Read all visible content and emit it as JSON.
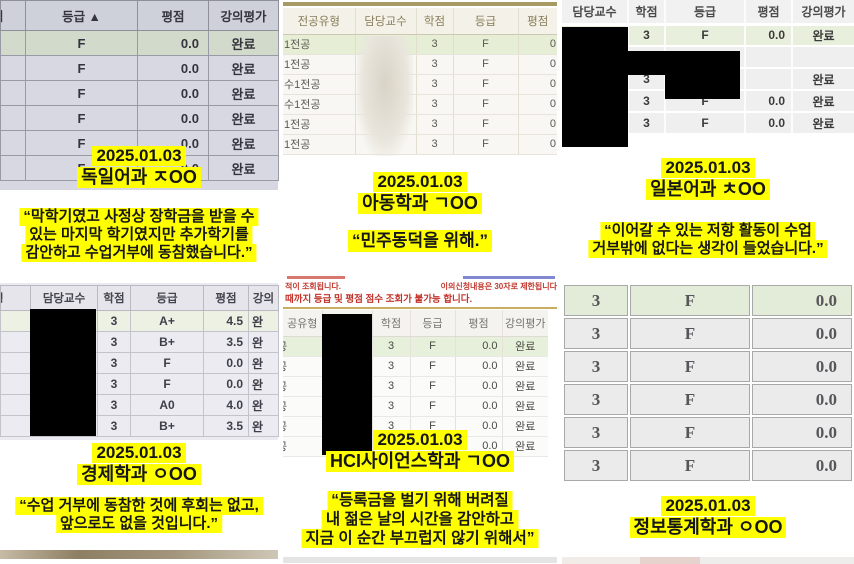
{
  "colors": {
    "highlight_yellow": "#ffff00",
    "notice_red": "#c2332b",
    "redaction_black": "#000000",
    "row_green": "#e6efdb"
  },
  "panels": {
    "german": {
      "table": {
        "headers": [
          "점",
          "등급 ▲",
          "평점",
          "강의평가"
        ],
        "rows": [
          [
            "",
            "F",
            "0.0",
            "완료"
          ],
          [
            "",
            "F",
            "0.0",
            "완료"
          ],
          [
            "",
            "F",
            "0.0",
            "완료"
          ],
          [
            "",
            "F",
            "0.0",
            "완료"
          ],
          [
            "",
            "F",
            "0.0",
            "완료"
          ],
          [
            "",
            "F",
            "0.0",
            "완료"
          ]
        ]
      },
      "caption": {
        "date": "2025.01.03",
        "dept": "독일어과 ㅈOO"
      },
      "quote": [
        "“막학기였고 사정상 장학금을 받을 수",
        "있는 마지막 학기였지만 추가학기를",
        "감안하고 수업거부에 동참했습니다.”"
      ]
    },
    "child": {
      "table": {
        "headers": [
          "전공유형",
          "담당교수",
          "학점",
          "등급",
          "평점"
        ],
        "rows": [
          [
            "1전공",
            "",
            "3",
            "F",
            "0"
          ],
          [
            "1전공",
            "",
            "3",
            "F",
            "0"
          ],
          [
            "수1전공",
            "",
            "3",
            "F",
            "0"
          ],
          [
            "수1전공",
            "",
            "3",
            "F",
            "0"
          ],
          [
            "1전공",
            "",
            "3",
            "F",
            "0"
          ],
          [
            "1전공",
            "",
            "3",
            "F",
            "0"
          ]
        ]
      },
      "caption": {
        "date": "2025.01.03",
        "dept": "아동학과 ㄱOO"
      },
      "quote": [
        "“민주동덕을 위해.”"
      ]
    },
    "japanese": {
      "table": {
        "headers": [
          "담당교수",
          "학점",
          "등급",
          "평점",
          "강의평가"
        ],
        "rows": [
          [
            "",
            "3",
            "F",
            "0.0",
            "완료"
          ],
          [
            "",
            "",
            "",
            "",
            ""
          ],
          [
            "",
            "3",
            "",
            "",
            "완료"
          ],
          [
            "",
            "3",
            "F",
            "0.0",
            "완료"
          ],
          [
            "",
            "3",
            "F",
            "0.0",
            "완료"
          ]
        ]
      },
      "caption": {
        "date": "2025.01.03",
        "dept": "일본어과 ㅊOO"
      },
      "quote": [
        "“이어갈 수 있는 저항 활동이 수업",
        "거부밖에 없다는 생각이 들었습니다.”"
      ]
    },
    "econ": {
      "table": {
        "headers": [
          "형",
          "담당교수",
          "학점",
          "등급",
          "평점",
          "강의"
        ],
        "rows": [
          [
            "",
            "",
            "3",
            "A+",
            "4.5",
            "완"
          ],
          [
            "",
            "",
            "3",
            "B+",
            "3.5",
            "완"
          ],
          [
            "",
            "",
            "3",
            "F",
            "0.0",
            "완"
          ],
          [
            "",
            "",
            "3",
            "F",
            "0.0",
            "완"
          ],
          [
            "",
            "",
            "3",
            "A0",
            "4.0",
            "완"
          ],
          [
            "",
            "",
            "3",
            "B+",
            "3.5",
            "완"
          ]
        ]
      },
      "caption": {
        "date": "2025.01.03",
        "dept": "경제학과 ㅇOO"
      },
      "quote": [
        "“수업 거부에 동참한 것에 후회는 없고,",
        "앞으로도 없을 것입니다.”"
      ]
    },
    "hci": {
      "notice": {
        "left": "적이 조회됩니다.",
        "right": "이의신청내용은 30자로 제한됩니다",
        "line2": "때까지 등급 및 평점 점수 조회가 불가능 합니다."
      },
      "table": {
        "headers": [
          "공유형",
          "",
          "학점",
          "등급",
          "평점",
          "강의평가"
        ],
        "rows": [
          [
            "공",
            "",
            "3",
            "F",
            "0.0",
            "완료"
          ],
          [
            "공",
            "",
            "3",
            "F",
            "0.0",
            "완료"
          ],
          [
            "공",
            "",
            "3",
            "F",
            "0.0",
            "완료"
          ],
          [
            "공",
            "",
            "3",
            "F",
            "0.0",
            "완료"
          ],
          [
            "공",
            "",
            "3",
            "F",
            "0.0",
            "완료"
          ],
          [
            "공",
            "",
            "",
            "",
            "0.0",
            "완료"
          ]
        ]
      },
      "caption": {
        "date": "2025.01.03",
        "dept": "HCI사이언스학과 ㄱOO"
      },
      "quote": [
        "“등록금을 벌기 위해 버려질",
        "내 젊은 날의 시간을 감안하고",
        "지금 이 순간 부끄럽지 않기 위해서”"
      ]
    },
    "stats": {
      "table": {
        "headers": [],
        "rows": [
          [
            "3",
            "F",
            "0.0"
          ],
          [
            "3",
            "F",
            "0.0"
          ],
          [
            "3",
            "F",
            "0.0"
          ],
          [
            "3",
            "F",
            "0.0"
          ],
          [
            "3",
            "F",
            "0.0"
          ],
          [
            "3",
            "F",
            "0.0"
          ]
        ]
      },
      "caption": {
        "date": "2025.01.03",
        "dept": "정보통계학과 ㅇOO"
      }
    }
  }
}
